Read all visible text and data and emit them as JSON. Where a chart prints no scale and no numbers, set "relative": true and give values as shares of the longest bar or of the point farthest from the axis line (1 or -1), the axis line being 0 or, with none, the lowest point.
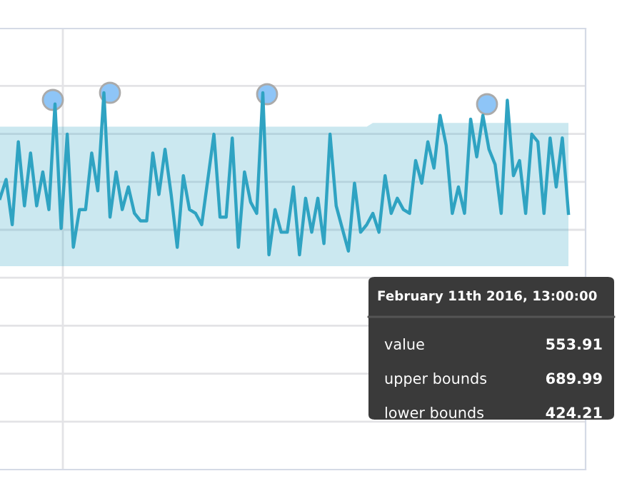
{
  "chart_data": {
    "type": "line",
    "relative": true,
    "grid": true,
    "legend": false,
    "marker": "none",
    "line_style": "solid",
    "categories": [
      null,
      null,
      null,
      null,
      null,
      null,
      null,
      null,
      null,
      null,
      null,
      null,
      null,
      null,
      null,
      null,
      null,
      null,
      null,
      null,
      null,
      null,
      null,
      null,
      null,
      null,
      null,
      null,
      null,
      null,
      null,
      null,
      null,
      null,
      null,
      null,
      null,
      null,
      null,
      null,
      null,
      null,
      null,
      null,
      null,
      null,
      null,
      null,
      null,
      null,
      null,
      null,
      null,
      null,
      null,
      null,
      null,
      null,
      null,
      null,
      null,
      null,
      null,
      null,
      null,
      null,
      null,
      null,
      null,
      null,
      null,
      null,
      null,
      null,
      null,
      null,
      null,
      null,
      null,
      null,
      null,
      null,
      null,
      null,
      null,
      null,
      null,
      null,
      null,
      null,
      null,
      null,
      null,
      null
    ],
    "series": [
      {
        "color": "#2fa3c2",
        "values": [
          0.72,
          0.77,
          0.65,
          0.87,
          0.7,
          0.84,
          0.7,
          0.79,
          0.69,
          0.97,
          0.64,
          0.89,
          0.59,
          0.69,
          0.69,
          0.84,
          0.74,
          1.0,
          0.67,
          0.79,
          0.69,
          0.75,
          0.68,
          0.66,
          0.66,
          0.84,
          0.73,
          0.85,
          0.73,
          0.59,
          0.78,
          0.69,
          0.68,
          0.65,
          0.77,
          0.89,
          0.67,
          0.67,
          0.88,
          0.59,
          0.79,
          0.71,
          0.68,
          1.0,
          0.57,
          0.69,
          0.63,
          0.63,
          0.75,
          0.57,
          0.72,
          0.63,
          0.72,
          0.6,
          0.89,
          0.7,
          0.64,
          0.58,
          0.76,
          0.63,
          0.65,
          0.68,
          0.63,
          0.78,
          0.68,
          0.72,
          0.69,
          0.68,
          0.82,
          0.76,
          0.87,
          0.8,
          0.94,
          0.86,
          0.68,
          0.75,
          0.68,
          0.93,
          0.83,
          0.94,
          0.85,
          0.81,
          0.68,
          0.98,
          0.78,
          0.82,
          0.68,
          0.89,
          0.87,
          0.68,
          0.88,
          0.75,
          0.88,
          0.68
        ],
        "lower": [
          0.54,
          0.54,
          0.54,
          0.54,
          0.54,
          0.54,
          0.54,
          0.54,
          0.54,
          0.54,
          0.54,
          0.54,
          0.54,
          0.54,
          0.54,
          0.54,
          0.54,
          0.54,
          0.54,
          0.54,
          0.54,
          0.54,
          0.54,
          0.54,
          0.54,
          0.54,
          0.54,
          0.54,
          0.54,
          0.54,
          0.54,
          0.54,
          0.54,
          0.54,
          0.54,
          0.54,
          0.54,
          0.54,
          0.54,
          0.54,
          0.54,
          0.54,
          0.54,
          0.54,
          0.54,
          0.54,
          0.54,
          0.54,
          0.54,
          0.54,
          0.54,
          0.54,
          0.54,
          0.54,
          0.54,
          0.54,
          0.54,
          0.54,
          0.54,
          0.54,
          0.54,
          0.54,
          0.54,
          0.54,
          0.54,
          0.54,
          0.54,
          0.54,
          0.54,
          0.54,
          0.54,
          0.54,
          0.54,
          0.54,
          0.54,
          0.54,
          0.54,
          0.54,
          0.54,
          0.54,
          0.54,
          0.54,
          0.54,
          0.54,
          0.54,
          0.54,
          0.54,
          0.54,
          0.54,
          0.54,
          0.54,
          0.54,
          0.54,
          0.54
        ],
        "upper": [
          0.91,
          0.91,
          0.91,
          0.91,
          0.91,
          0.91,
          0.91,
          0.91,
          0.91,
          0.91,
          0.91,
          0.91,
          0.91,
          0.91,
          0.91,
          0.91,
          0.91,
          0.91,
          0.91,
          0.91,
          0.91,
          0.91,
          0.91,
          0.91,
          0.91,
          0.91,
          0.91,
          0.91,
          0.91,
          0.91,
          0.91,
          0.91,
          0.91,
          0.91,
          0.91,
          0.91,
          0.91,
          0.91,
          0.91,
          0.91,
          0.91,
          0.91,
          0.91,
          0.91,
          0.91,
          0.91,
          0.91,
          0.91,
          0.91,
          0.91,
          0.91,
          0.91,
          0.91,
          0.91,
          0.91,
          0.91,
          0.91,
          0.91,
          0.91,
          0.91,
          0.91,
          0.92,
          0.92,
          0.92,
          0.92,
          0.92,
          0.92,
          0.92,
          0.92,
          0.92,
          0.92,
          0.92,
          0.92,
          0.92,
          0.92,
          0.92,
          0.92,
          0.92,
          0.92,
          0.92,
          0.92,
          0.92,
          0.92,
          0.92,
          0.92,
          0.92,
          0.92,
          0.92,
          0.92,
          0.92,
          0.92,
          0.92,
          0.92,
          0.92
        ]
      }
    ],
    "annotations": [
      "February 11th 2016, 13:00:00",
      "value",
      "553.91",
      "upper bounds",
      "689.99",
      "lower bounds",
      "424.21"
    ]
  }
}
